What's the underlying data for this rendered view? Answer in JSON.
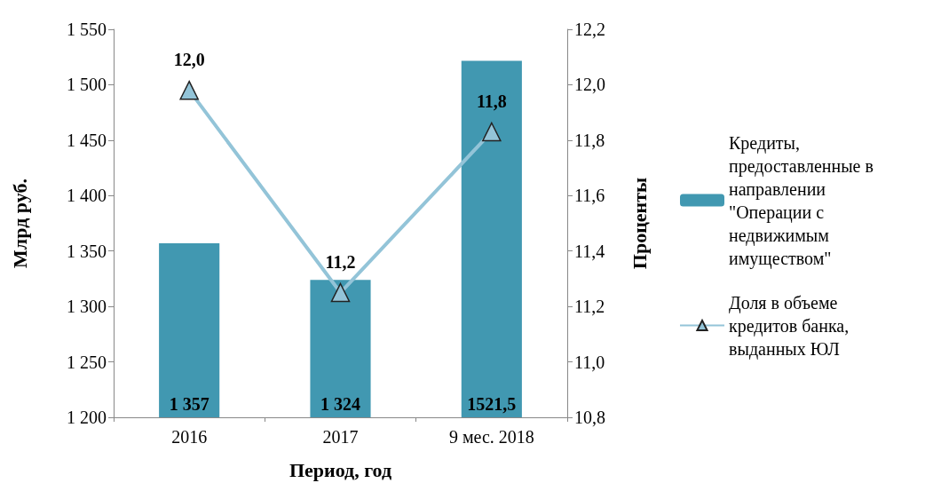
{
  "chart_data": {
    "type": "bar",
    "xlabel": "Период, год",
    "ylabel": "Млрд руб.",
    "y2label": "Проценты",
    "categories": [
      "2016",
      "2017",
      "9 мес. 2018"
    ],
    "series": [
      {
        "name": "Кредиты, предоставленные в направлении \"Операции с недвижимым имуществом\"",
        "color": "#4198b1",
        "values": [
          1357,
          1324,
          1521.5
        ],
        "value_labels": [
          "1 357",
          "1 324",
          "1521,5"
        ]
      },
      {
        "name": "Доля в объеме кредитов банка, выданных ЮЛ",
        "type": "line",
        "axis": "y2",
        "color": "#93c4d8",
        "marker": "triangle",
        "values": [
          11.98,
          11.25,
          11.83
        ],
        "value_labels": [
          "12,0",
          "11,2",
          "11,8"
        ]
      }
    ],
    "ylim": [
      1200,
      1550
    ],
    "yticks": [
      {
        "value": 1200,
        "label": "1 200"
      },
      {
        "value": 1250,
        "label": "1 250"
      },
      {
        "value": 1300,
        "label": "1 300"
      },
      {
        "value": 1350,
        "label": "1 350"
      },
      {
        "value": 1400,
        "label": "1 400"
      },
      {
        "value": 1450,
        "label": "1 450"
      },
      {
        "value": 1500,
        "label": "1 500"
      },
      {
        "value": 1550,
        "label": "1 550"
      }
    ],
    "y2lim": [
      10.8,
      12.2
    ],
    "y2ticks": [
      {
        "value": 10.8,
        "label": "10,8"
      },
      {
        "value": 11,
        "label": "11,0"
      },
      {
        "value": 11.2,
        "label": "11,2"
      },
      {
        "value": 11.4,
        "label": "11,4"
      },
      {
        "value": 11.6,
        "label": "11,6"
      },
      {
        "value": 11.8,
        "label": "11,8"
      },
      {
        "value": 12,
        "label": "12,0"
      },
      {
        "value": 12.2,
        "label": "12,2"
      }
    ],
    "grid": false,
    "legend": "right"
  }
}
